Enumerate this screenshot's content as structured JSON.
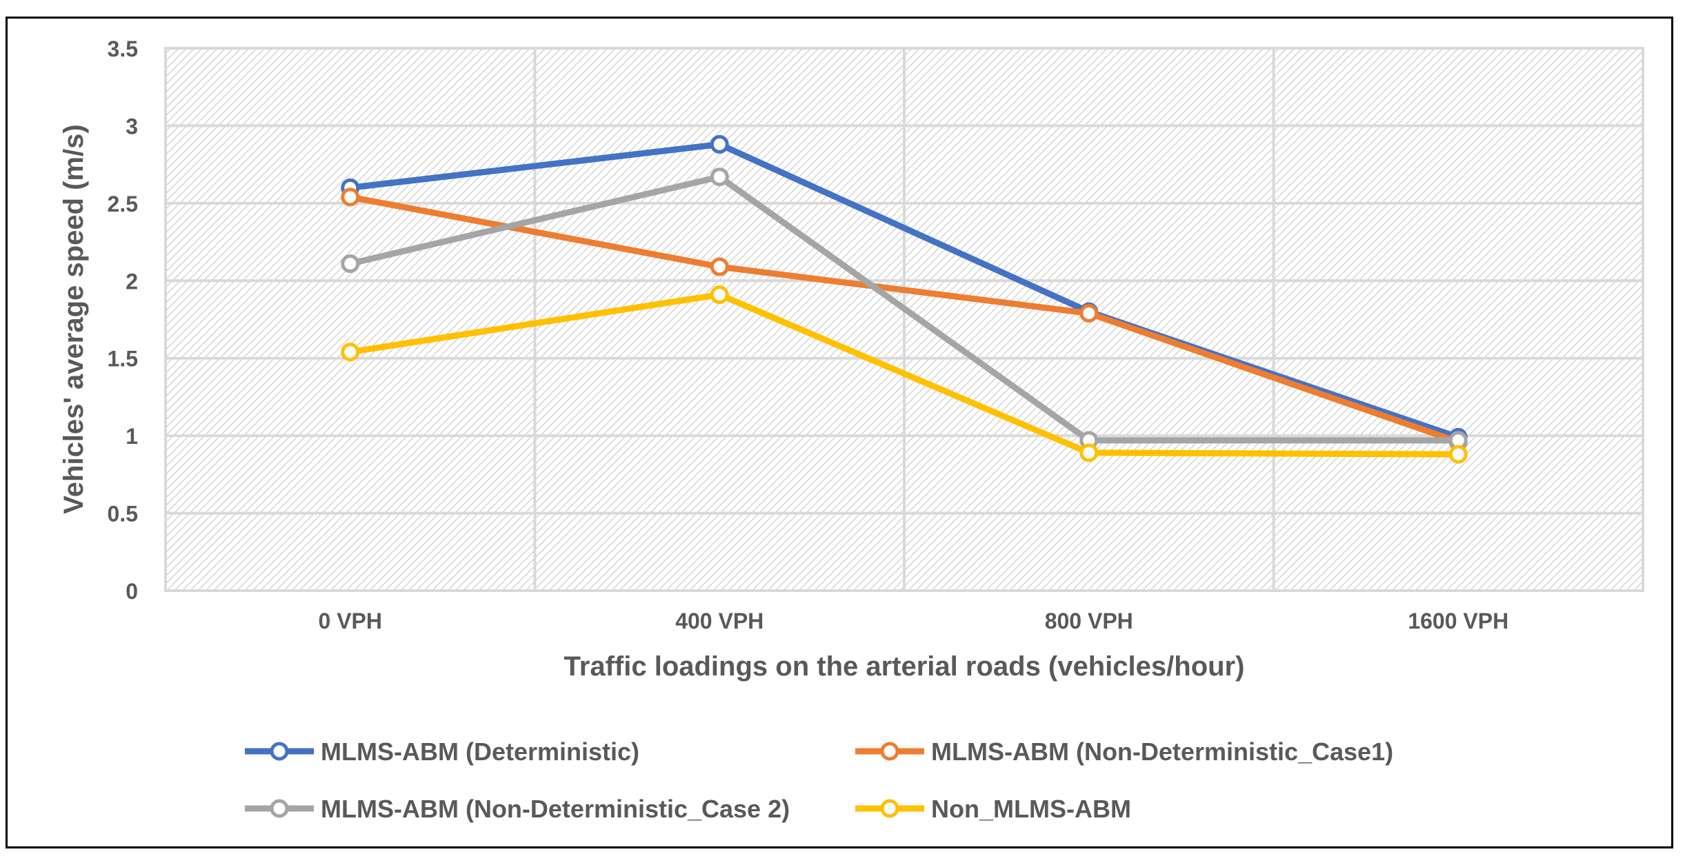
{
  "chart_data": {
    "type": "line",
    "title": "",
    "xlabel": "Traffic loadings on the arterial roads (vehicles/hour)",
    "ylabel": "Vehicles' average speed (m/s)",
    "categories": [
      "0 VPH",
      "400 VPH",
      "800 VPH",
      "1600 VPH"
    ],
    "ylim": [
      0,
      3.5
    ],
    "yticks": [
      "0",
      "0.5",
      "1",
      "1.5",
      "2",
      "2.5",
      "3",
      "3.5"
    ],
    "grid": true,
    "legend_position": "bottom",
    "series": [
      {
        "name": "MLMS-ABM (Deterministic)",
        "color": "#4472C4",
        "values": [
          2.6,
          2.88,
          1.8,
          0.99
        ]
      },
      {
        "name": "MLMS-ABM (Non-Deterministic_Case1)",
        "color": "#ED7D31",
        "values": [
          2.54,
          2.09,
          1.79,
          0.96
        ]
      },
      {
        "name": "MLMS-ABM (Non-Deterministic_Case 2)",
        "color": "#A5A5A5",
        "values": [
          2.11,
          2.67,
          0.97,
          0.97
        ]
      },
      {
        "name": "Non_MLMS-ABM",
        "color": "#FFC000",
        "values": [
          1.54,
          1.91,
          0.89,
          0.88
        ]
      }
    ]
  }
}
